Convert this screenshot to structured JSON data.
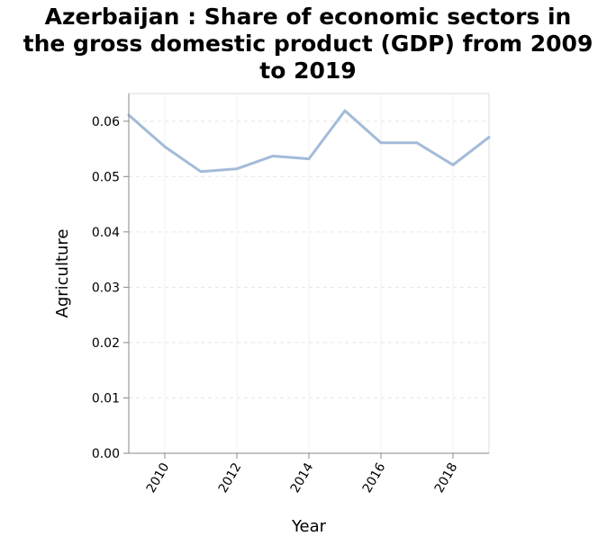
{
  "chart_data": {
    "type": "line",
    "title_lines": [
      "Azerbaijan : Share of economic sectors in",
      "the gross domestic product (GDP) from 2009",
      "to 2019"
    ],
    "xlabel": "Year",
    "ylabel": "Agriculture",
    "x_ticks": [
      "2010",
      "2012",
      "2014",
      "2016",
      "2018"
    ],
    "y_ticks": [
      "0.00",
      "0.01",
      "0.02",
      "0.03",
      "0.04",
      "0.05",
      "0.06"
    ],
    "xlim": [
      2009,
      2019
    ],
    "ylim": [
      0,
      0.065
    ],
    "grid": true,
    "line_color": "#a3bbd9",
    "series": [
      {
        "x": [
          2009,
          2010,
          2011,
          2012,
          2013,
          2014,
          2015,
          2016,
          2017,
          2018,
          2019
        ],
        "values": [
          0.0611,
          0.0554,
          0.0509,
          0.0514,
          0.0537,
          0.0532,
          0.0619,
          0.0561,
          0.0561,
          0.0521,
          0.0571
        ]
      }
    ]
  }
}
